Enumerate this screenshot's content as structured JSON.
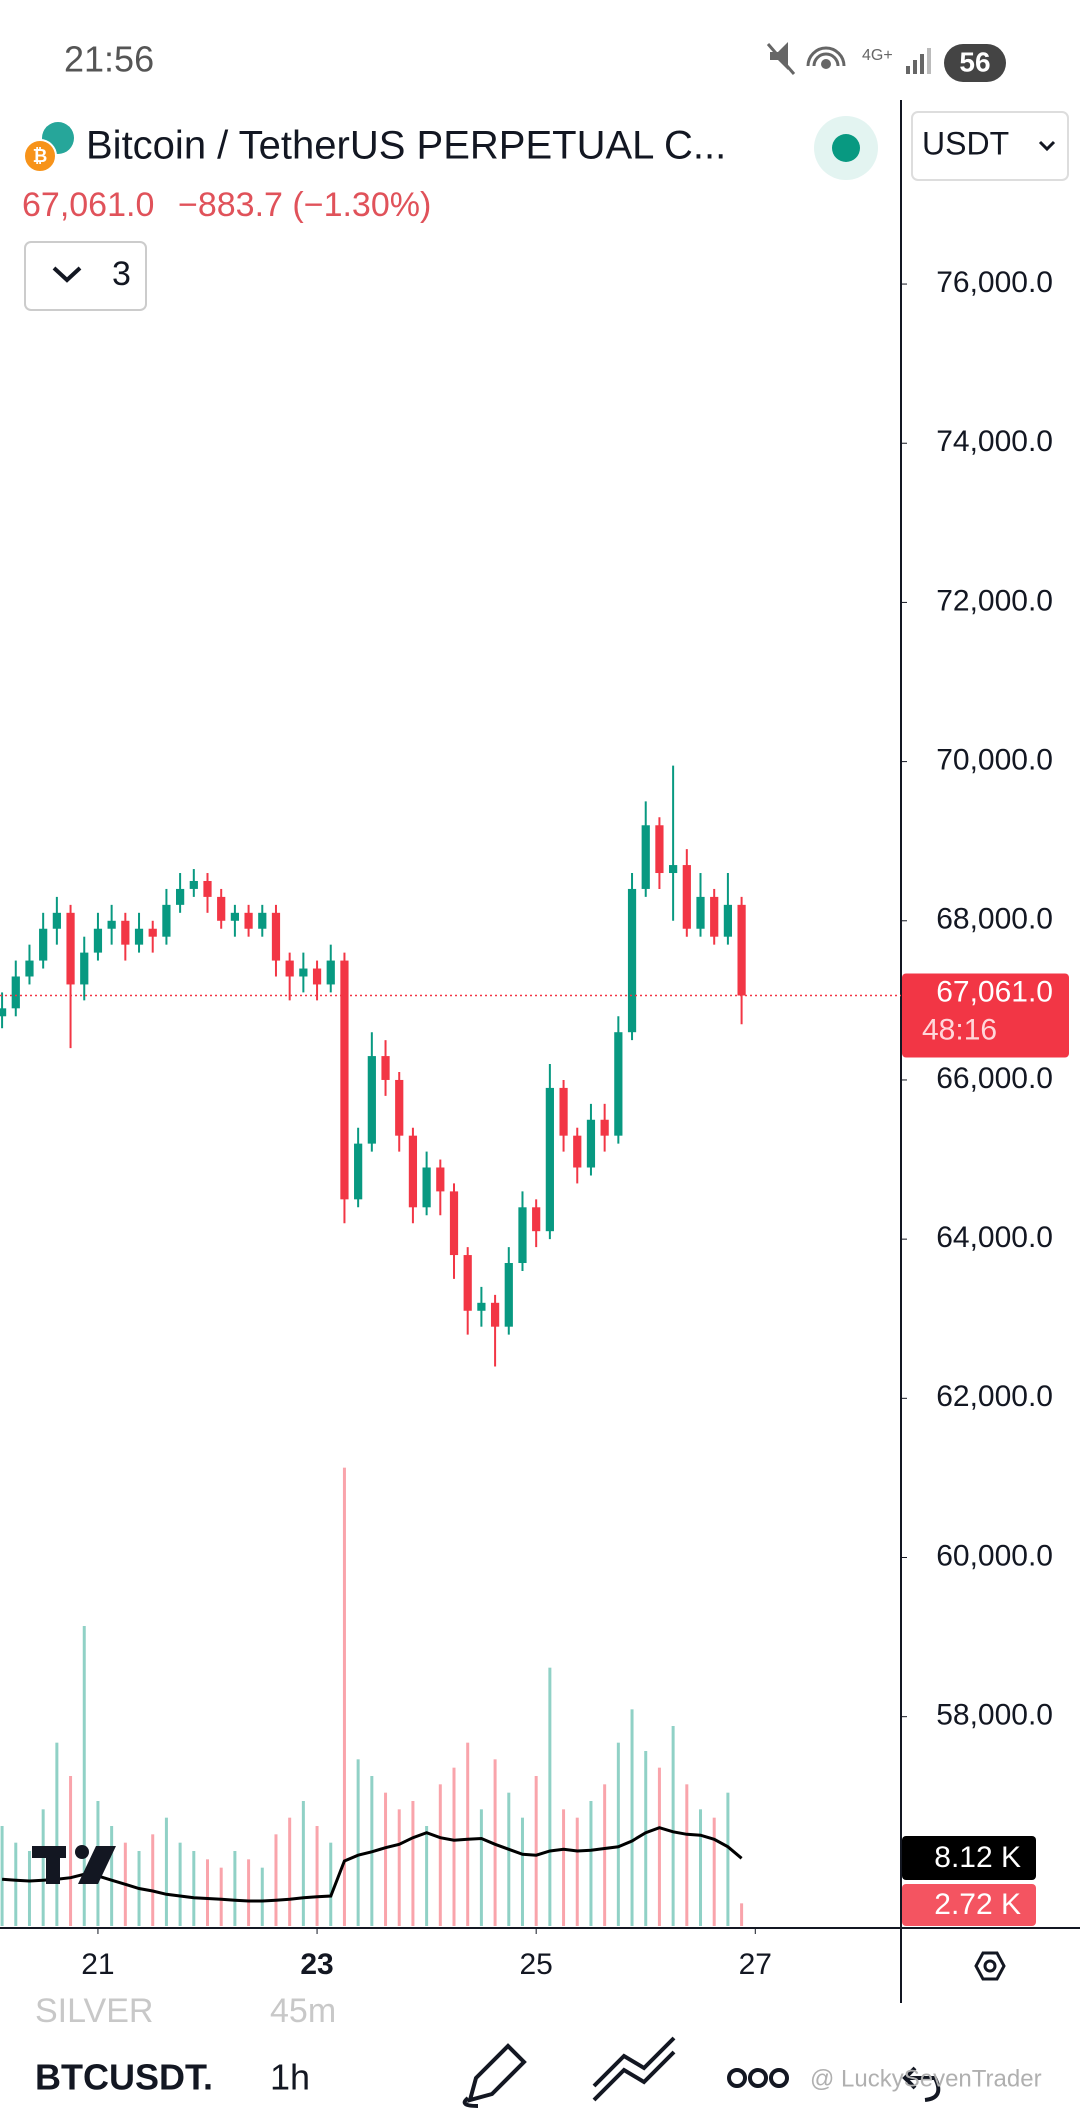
{
  "status_bar": {
    "time": "21:56",
    "battery": "56"
  },
  "header": {
    "title": "Bitcoin / TetherUS PERPETUAL C...",
    "price": "67,061.0",
    "change": "−883.7 (−1.30%)",
    "indicators": "3",
    "currency": "USDT"
  },
  "footer": {
    "faded_symbol": "SILVER",
    "faded_interval": "45m",
    "symbol": "BTCUSDT.",
    "interval": "1h",
    "watermark": "@ LuckySevenTrader"
  },
  "chart_data": {
    "type": "candlestick",
    "x": [
      20.125,
      20.25,
      20.375,
      20.5,
      20.625,
      20.75,
      20.875,
      21,
      21.125,
      21.25,
      21.375,
      21.5,
      21.625,
      21.75,
      21.875,
      22,
      22.125,
      22.25,
      22.375,
      22.5,
      22.625,
      22.75,
      22.875,
      23,
      23.125,
      23.25,
      23.375,
      23.5,
      23.625,
      23.75,
      23.875,
      24,
      24.125,
      24.25,
      24.375,
      24.5,
      24.625,
      24.75,
      24.875,
      25,
      25.125,
      25.25,
      25.375,
      25.5,
      25.625,
      25.75,
      25.875,
      26,
      26.125,
      26.25,
      26.375,
      26.5,
      26.625,
      26.75,
      26.875
    ],
    "open": [
      66800,
      66900,
      67300,
      67500,
      67900,
      68100,
      67200,
      67600,
      67900,
      68000,
      67700,
      67900,
      67800,
      68200,
      68400,
      68500,
      68300,
      68000,
      68100,
      67900,
      68100,
      67500,
      67300,
      67400,
      67200,
      67500,
      64500,
      65200,
      66300,
      66000,
      65300,
      64400,
      64900,
      64600,
      63800,
      63100,
      63200,
      62900,
      63700,
      64400,
      64100,
      65900,
      65300,
      64900,
      65500,
      65300,
      66600,
      68400,
      69200,
      68600,
      68700,
      67900,
      68300,
      67800,
      68200
    ],
    "high": [
      67100,
      67500,
      67700,
      68100,
      68300,
      68200,
      67800,
      68100,
      68200,
      68100,
      68100,
      68000,
      68400,
      68600,
      68650,
      68600,
      68400,
      68200,
      68200,
      68200,
      68200,
      67600,
      67600,
      67500,
      67700,
      67600,
      65400,
      66600,
      66500,
      66100,
      65400,
      65100,
      65000,
      64700,
      63900,
      63400,
      63300,
      63900,
      64600,
      64500,
      66200,
      66000,
      65400,
      65700,
      65700,
      66800,
      68600,
      69500,
      69300,
      69950,
      68900,
      68600,
      68400,
      68600,
      68300
    ],
    "low": [
      66650,
      66800,
      67200,
      67400,
      67700,
      66400,
      67000,
      67500,
      67700,
      67500,
      67600,
      67600,
      67700,
      68100,
      68300,
      68100,
      67900,
      67800,
      67800,
      67800,
      67300,
      67000,
      67100,
      67000,
      67100,
      64200,
      64400,
      65100,
      65800,
      65100,
      64200,
      64300,
      64300,
      63500,
      62800,
      62900,
      62400,
      62800,
      63600,
      63900,
      64000,
      65100,
      64700,
      64800,
      65100,
      65200,
      66500,
      68300,
      68400,
      68000,
      67800,
      67800,
      67700,
      67700,
      66700
    ],
    "close": [
      66900,
      67300,
      67500,
      67900,
      68100,
      67200,
      67600,
      67900,
      68000,
      67700,
      67900,
      67800,
      68200,
      68400,
      68500,
      68300,
      68000,
      68100,
      67900,
      68100,
      67500,
      67300,
      67400,
      67200,
      67500,
      64500,
      65200,
      66300,
      66000,
      65300,
      64400,
      64900,
      64600,
      63800,
      63100,
      63200,
      62900,
      63700,
      64400,
      64100,
      65900,
      65300,
      64900,
      65500,
      65300,
      66600,
      68400,
      69200,
      68600,
      68700,
      67900,
      68300,
      67800,
      68200,
      67061
    ],
    "up_color": "#089981",
    "down_color": "#f23645",
    "xlim": [
      20.106,
      28.33
    ],
    "xticks": [
      21,
      23,
      25,
      27
    ],
    "ylim": [
      55370,
      78300
    ],
    "yticks": [
      {
        "value": 58000,
        "label": "58,000.0"
      },
      {
        "value": 60000,
        "label": "60,000.0"
      },
      {
        "value": 62000,
        "label": "62,000.0"
      },
      {
        "value": 64000,
        "label": "64,000.0"
      },
      {
        "value": 66000,
        "label": "66,000.0"
      },
      {
        "value": 68000,
        "label": "68,000.0"
      },
      {
        "value": 70000,
        "label": "70,000.0"
      },
      {
        "value": 72000,
        "label": "72,000.0"
      },
      {
        "value": 74000,
        "label": "74,000.0"
      },
      {
        "value": 76000,
        "label": "76,000.0"
      }
    ],
    "countdown": "48:16",
    "volume": {
      "values": [
        12,
        10,
        9,
        14,
        22,
        18,
        36,
        15,
        12,
        10,
        9,
        11,
        13,
        10,
        9,
        8,
        7,
        9,
        8,
        7,
        11,
        13,
        15,
        12,
        10,
        55,
        20,
        18,
        16,
        14,
        15,
        12,
        17,
        19,
        22,
        14,
        20,
        16,
        13,
        18,
        31,
        14,
        13,
        15,
        17,
        22,
        26,
        21,
        19,
        24,
        17,
        14,
        13,
        16,
        2.72
      ],
      "last_label": "2.72 K",
      "vlim": [
        0,
        60
      ],
      "ma": {
        "values": [
          5.6,
          5.5,
          5.4,
          5.5,
          5.6,
          5.8,
          6.2,
          6.0,
          5.5,
          5.0,
          4.5,
          4.2,
          3.8,
          3.6,
          3.4,
          3.3,
          3.2,
          3.1,
          3.0,
          3.0,
          3.1,
          3.2,
          3.4,
          3.5,
          3.6,
          7.8,
          8.5,
          8.9,
          9.4,
          9.8,
          10.6,
          11.2,
          10.6,
          10.3,
          10.4,
          10.5,
          9.8,
          9.2,
          8.6,
          8.5,
          9.0,
          9.2,
          9.0,
          9.1,
          9.3,
          9.5,
          10.2,
          11.2,
          11.8,
          11.3,
          11.0,
          10.9,
          10.4,
          9.5,
          8.12
        ],
        "color": "#000000",
        "last_label": "8.12 K"
      }
    }
  }
}
